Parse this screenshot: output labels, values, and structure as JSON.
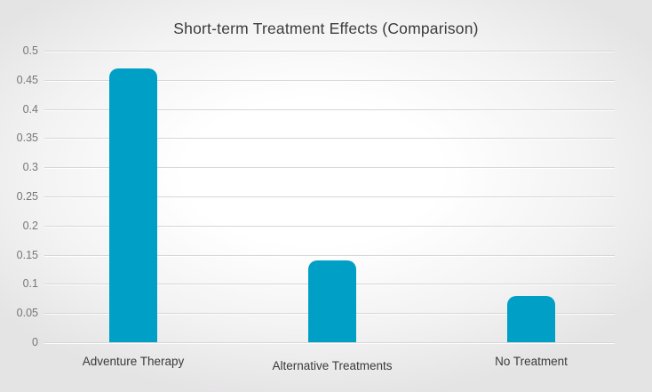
{
  "chart_data": {
    "type": "bar",
    "title": "Short-term Treatment Effects (Comparison)",
    "categories": [
      "Adventure Therapy",
      "Alternative Treatments",
      "No Treatment"
    ],
    "values": [
      0.47,
      0.14,
      0.08
    ],
    "xlabel": "",
    "ylabel": "",
    "ylim": [
      0,
      0.5
    ],
    "ytick_step": 0.05,
    "yticks_top_to_bottom": [
      "0.5",
      "0.45",
      "0.4",
      "0.35",
      "0.3",
      "0.25",
      "0.2",
      "0.15",
      "0.1",
      "0.05",
      "0"
    ],
    "grid": true,
    "legend_position": "none",
    "bar_color": "#009fc6",
    "gridline_color": "#d7d6d7",
    "background_center_color": "#ffffff",
    "background_edge_color": "#e5e4e5",
    "title_color": "#3c3c3c",
    "ytick_color": "#777676",
    "xtick_color": "#3a3a3a"
  }
}
